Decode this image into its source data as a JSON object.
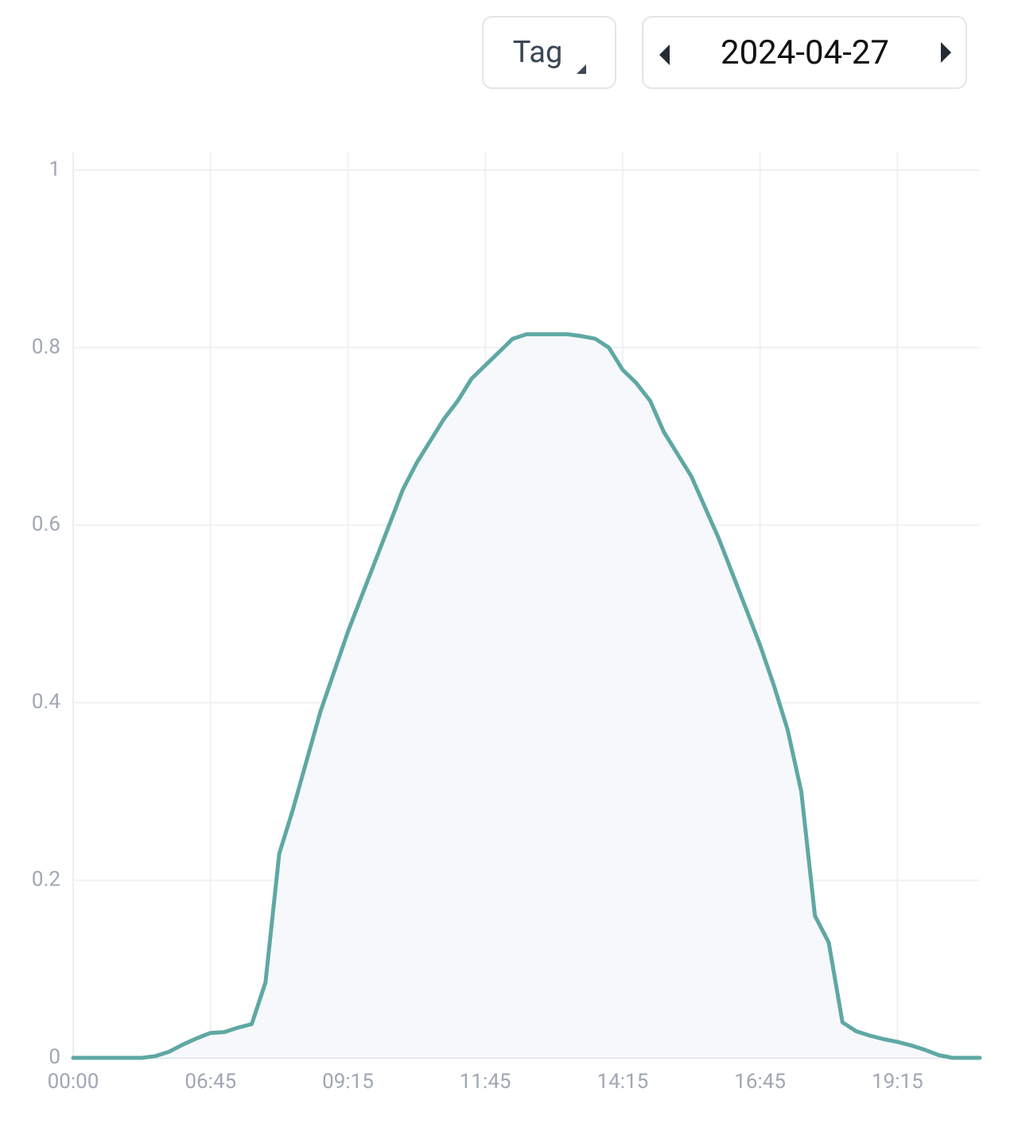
{
  "controls": {
    "view_select": "Tag",
    "date": "2024-04-27"
  },
  "chart_data": {
    "type": "area",
    "categories": [
      "00:00",
      null,
      null,
      null,
      null,
      null,
      null,
      null,
      null,
      null,
      "06:45",
      null,
      null,
      null,
      null,
      null,
      null,
      null,
      null,
      null,
      "09:15",
      null,
      null,
      null,
      null,
      null,
      null,
      null,
      null,
      null,
      "11:45",
      null,
      null,
      null,
      null,
      null,
      null,
      null,
      null,
      null,
      "14:15",
      null,
      null,
      null,
      null,
      null,
      null,
      null,
      null,
      null,
      "16:45",
      null,
      null,
      null,
      null,
      null,
      null,
      null,
      null,
      null,
      "19:15",
      null,
      null,
      null,
      null,
      null,
      null
    ],
    "values": [
      0,
      0,
      0,
      0,
      0,
      0,
      0.002,
      0.007,
      0.015,
      0.022,
      0.028,
      0.029,
      0.034,
      0.038,
      0.085,
      0.23,
      0.28,
      0.335,
      0.39,
      0.435,
      0.48,
      0.52,
      0.56,
      0.6,
      0.64,
      0.67,
      0.695,
      0.72,
      0.74,
      0.765,
      0.78,
      0.795,
      0.81,
      0.815,
      0.815,
      0.815,
      0.815,
      0.813,
      0.81,
      0.8,
      0.775,
      0.76,
      0.74,
      0.705,
      0.68,
      0.655,
      0.62,
      0.585,
      0.545,
      0.505,
      0.465,
      0.42,
      0.37,
      0.3,
      0.16,
      0.13,
      0.04,
      0.03,
      0.025,
      0.021,
      0.018,
      0.014,
      0.009,
      0.003,
      0,
      0,
      0
    ],
    "color": "#5fa8a3",
    "ylim": [
      0,
      1
    ],
    "yticks": [
      0,
      0.2,
      0.4,
      0.6,
      0.8,
      1
    ],
    "grid": true
  }
}
